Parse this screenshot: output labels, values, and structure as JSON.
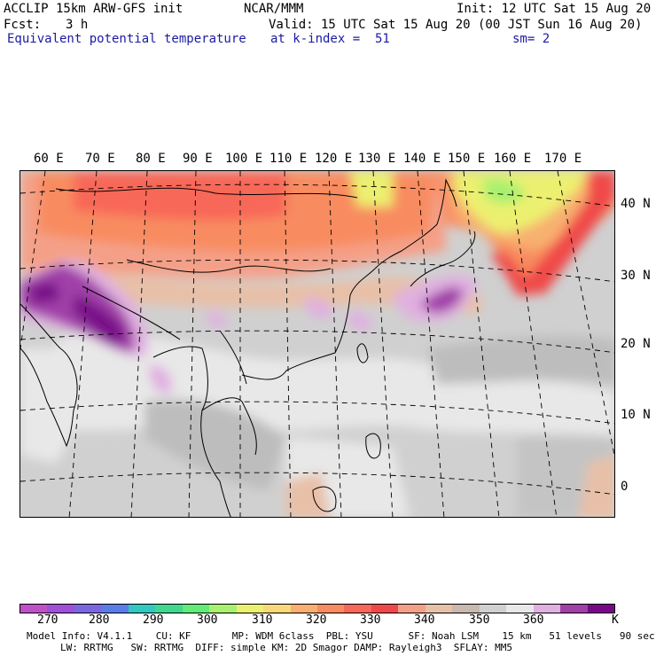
{
  "header": {
    "model": "ACCLIP 15km ARW-GFS init",
    "org": "NCAR/MMM",
    "init": "Init: 12 UTC Sat 15 Aug 20",
    "fcst_label": "Fcst:",
    "fcst_value": "3 h",
    "valid": "Valid: 15 UTC Sat 15 Aug 20 (00 JST Sun 16 Aug 20)",
    "field": "Equivalent potential temperature",
    "level": "at k-index =  51",
    "smoothing": "sm= 2"
  },
  "map": {
    "lon_labels": [
      "60 E",
      "70 E",
      "80 E",
      "90 E",
      "100 E",
      "110 E",
      "120 E",
      "130 E",
      "140 E",
      "150 E",
      "160 E",
      "170 E"
    ],
    "lat_labels": [
      "40 N",
      "30 N",
      "20 N",
      "10 N",
      "0"
    ]
  },
  "colorbar": {
    "colors": [
      "#c050c8",
      "#a050d8",
      "#7a66e0",
      "#5a7ce8",
      "#30c8c0",
      "#40d890",
      "#60ec78",
      "#a8f070",
      "#ecf070",
      "#f8d878",
      "#f8b070",
      "#f88c60",
      "#f86858",
      "#f04848",
      "#f4a088",
      "#e8c0a8",
      "#c8b8b0",
      "#d0d0d0",
      "#e8e8e8",
      "#e0b0e0",
      "#a040a8",
      "#780888"
    ],
    "labels": [
      "270",
      "280",
      "290",
      "300",
      "310",
      "320",
      "330",
      "340",
      "350",
      "360"
    ],
    "unit": "K"
  },
  "footer": {
    "line1": "Model Info: V4.1.1    CU: KF       MP: WDM 6class  PBL: YSU      SF: Noah LSM    15 km   51 levels   90 sec",
    "line2": "LW: RRTMG   SW: RRTMG  DIFF: simple KM: 2D Smagor DAMP: Rayleigh3  SFLAY: MM5"
  }
}
